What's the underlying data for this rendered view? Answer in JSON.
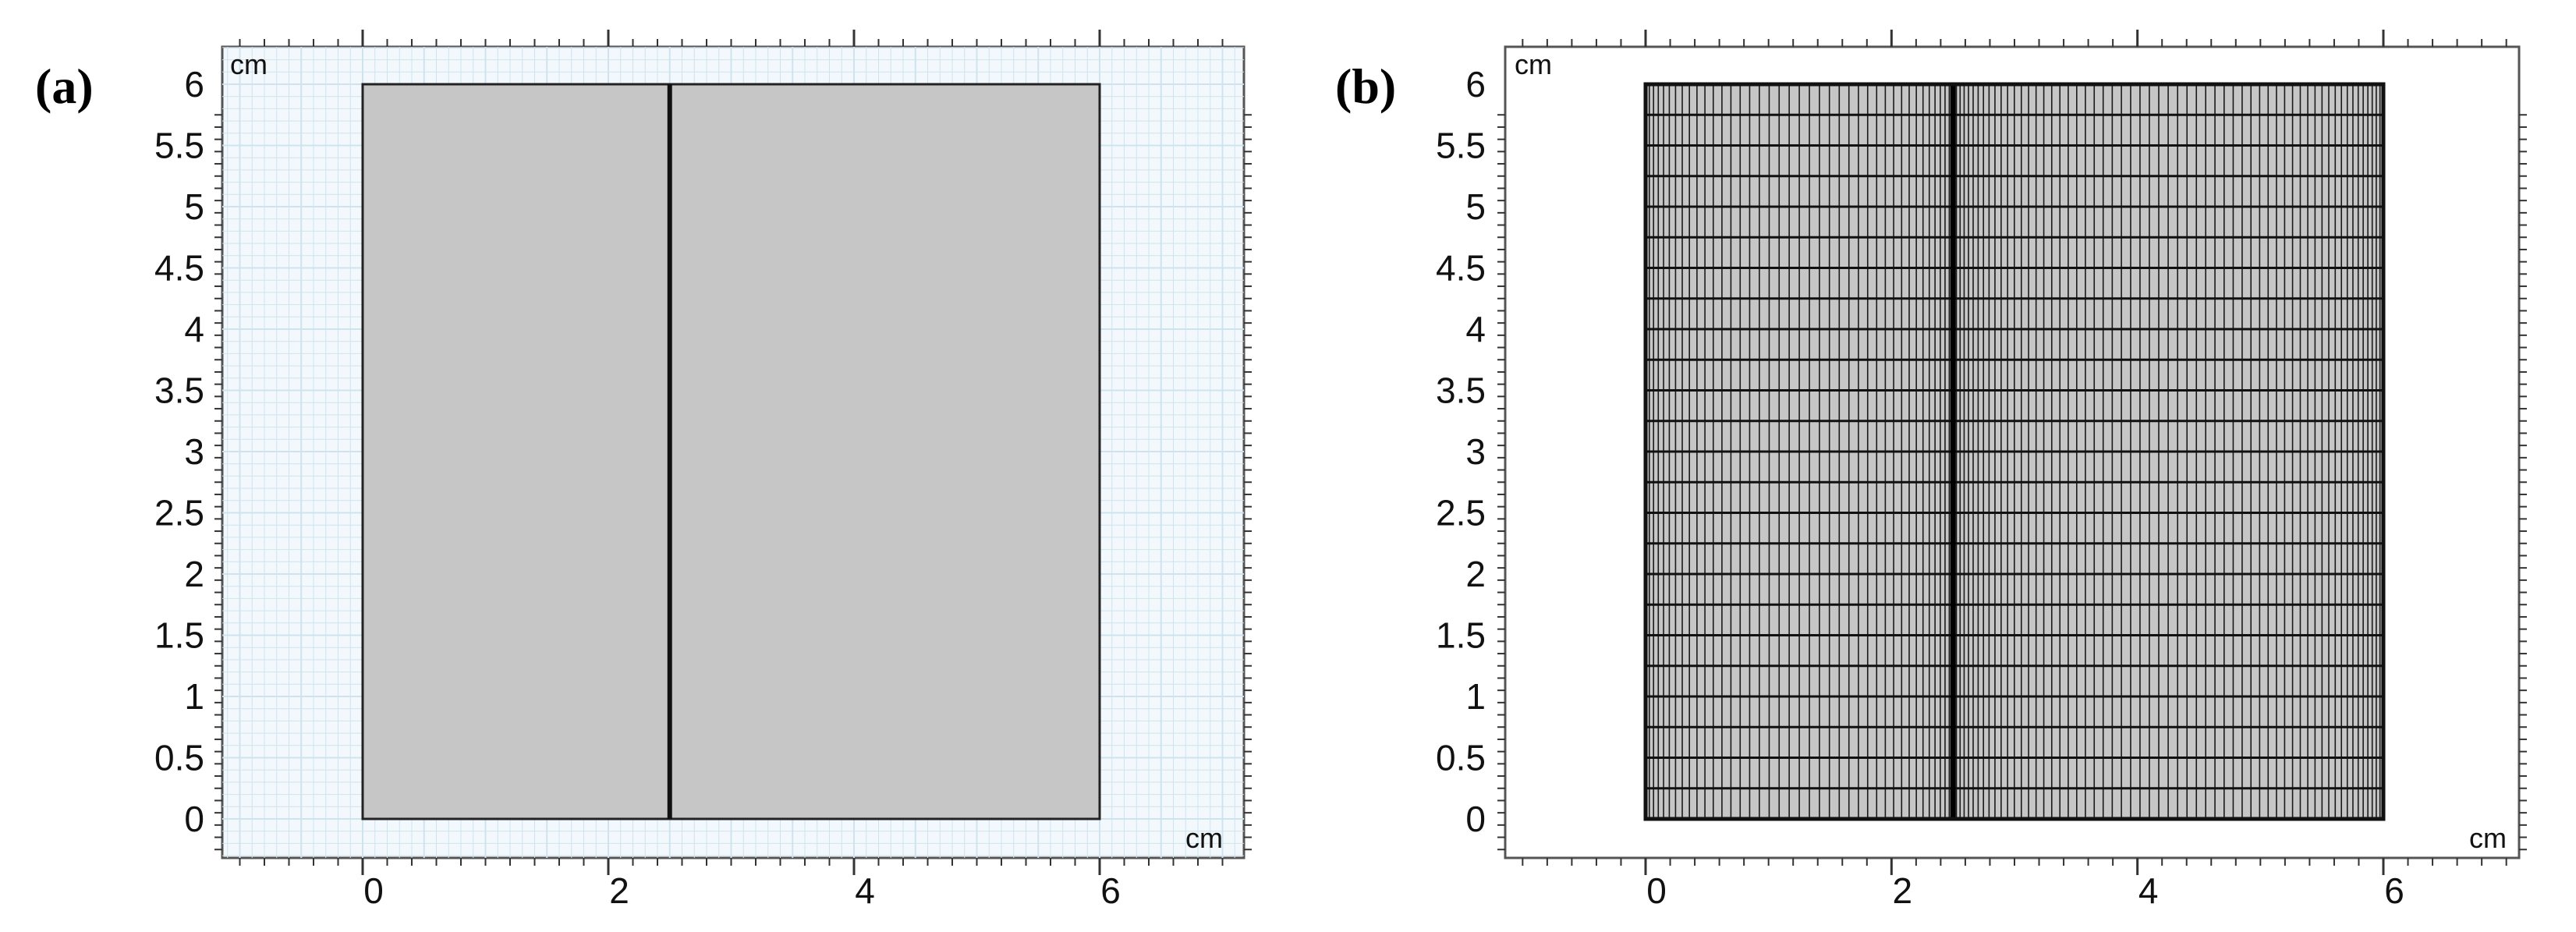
{
  "figure": {
    "panels": [
      {
        "id": "a",
        "label": "(a)",
        "kind": "geometry",
        "x_unit": "cm",
        "y_unit": "cm",
        "x_ticks": [
          "0",
          "2",
          "4",
          "6"
        ],
        "y_ticks": [
          "0",
          "0.5",
          "1",
          "1.5",
          "2",
          "2.5",
          "3",
          "3.5",
          "4",
          "4.5",
          "5",
          "5.5",
          "6"
        ],
        "background": "#f2f8fc",
        "grid_color": "#cfe3ee",
        "domain_fill": "#c6c6c6"
      },
      {
        "id": "b",
        "label": "(b)",
        "kind": "mesh",
        "x_unit": "cm",
        "y_unit": "cm",
        "x_ticks": [
          "0",
          "2",
          "4",
          "6"
        ],
        "y_ticks": [
          "0",
          "0.5",
          "1",
          "1.5",
          "2",
          "2.5",
          "3",
          "3.5",
          "4",
          "4.5",
          "5",
          "5.5",
          "6"
        ],
        "background": "#ffffff",
        "domain_fill": "#c6c6c6"
      }
    ],
    "geometry": {
      "domain_x": [
        0,
        6
      ],
      "domain_y": [
        0,
        6
      ],
      "interface_x": 2.5,
      "axis_x_range": [
        -1.1,
        7.1
      ],
      "axis_y_range": [
        -0.25,
        6.3
      ]
    },
    "mesh": {
      "rows": 24,
      "left_columns": 40,
      "right_columns": 60,
      "refinement": "graded toward x = 0, x = 2.5 and x = 6"
    }
  }
}
